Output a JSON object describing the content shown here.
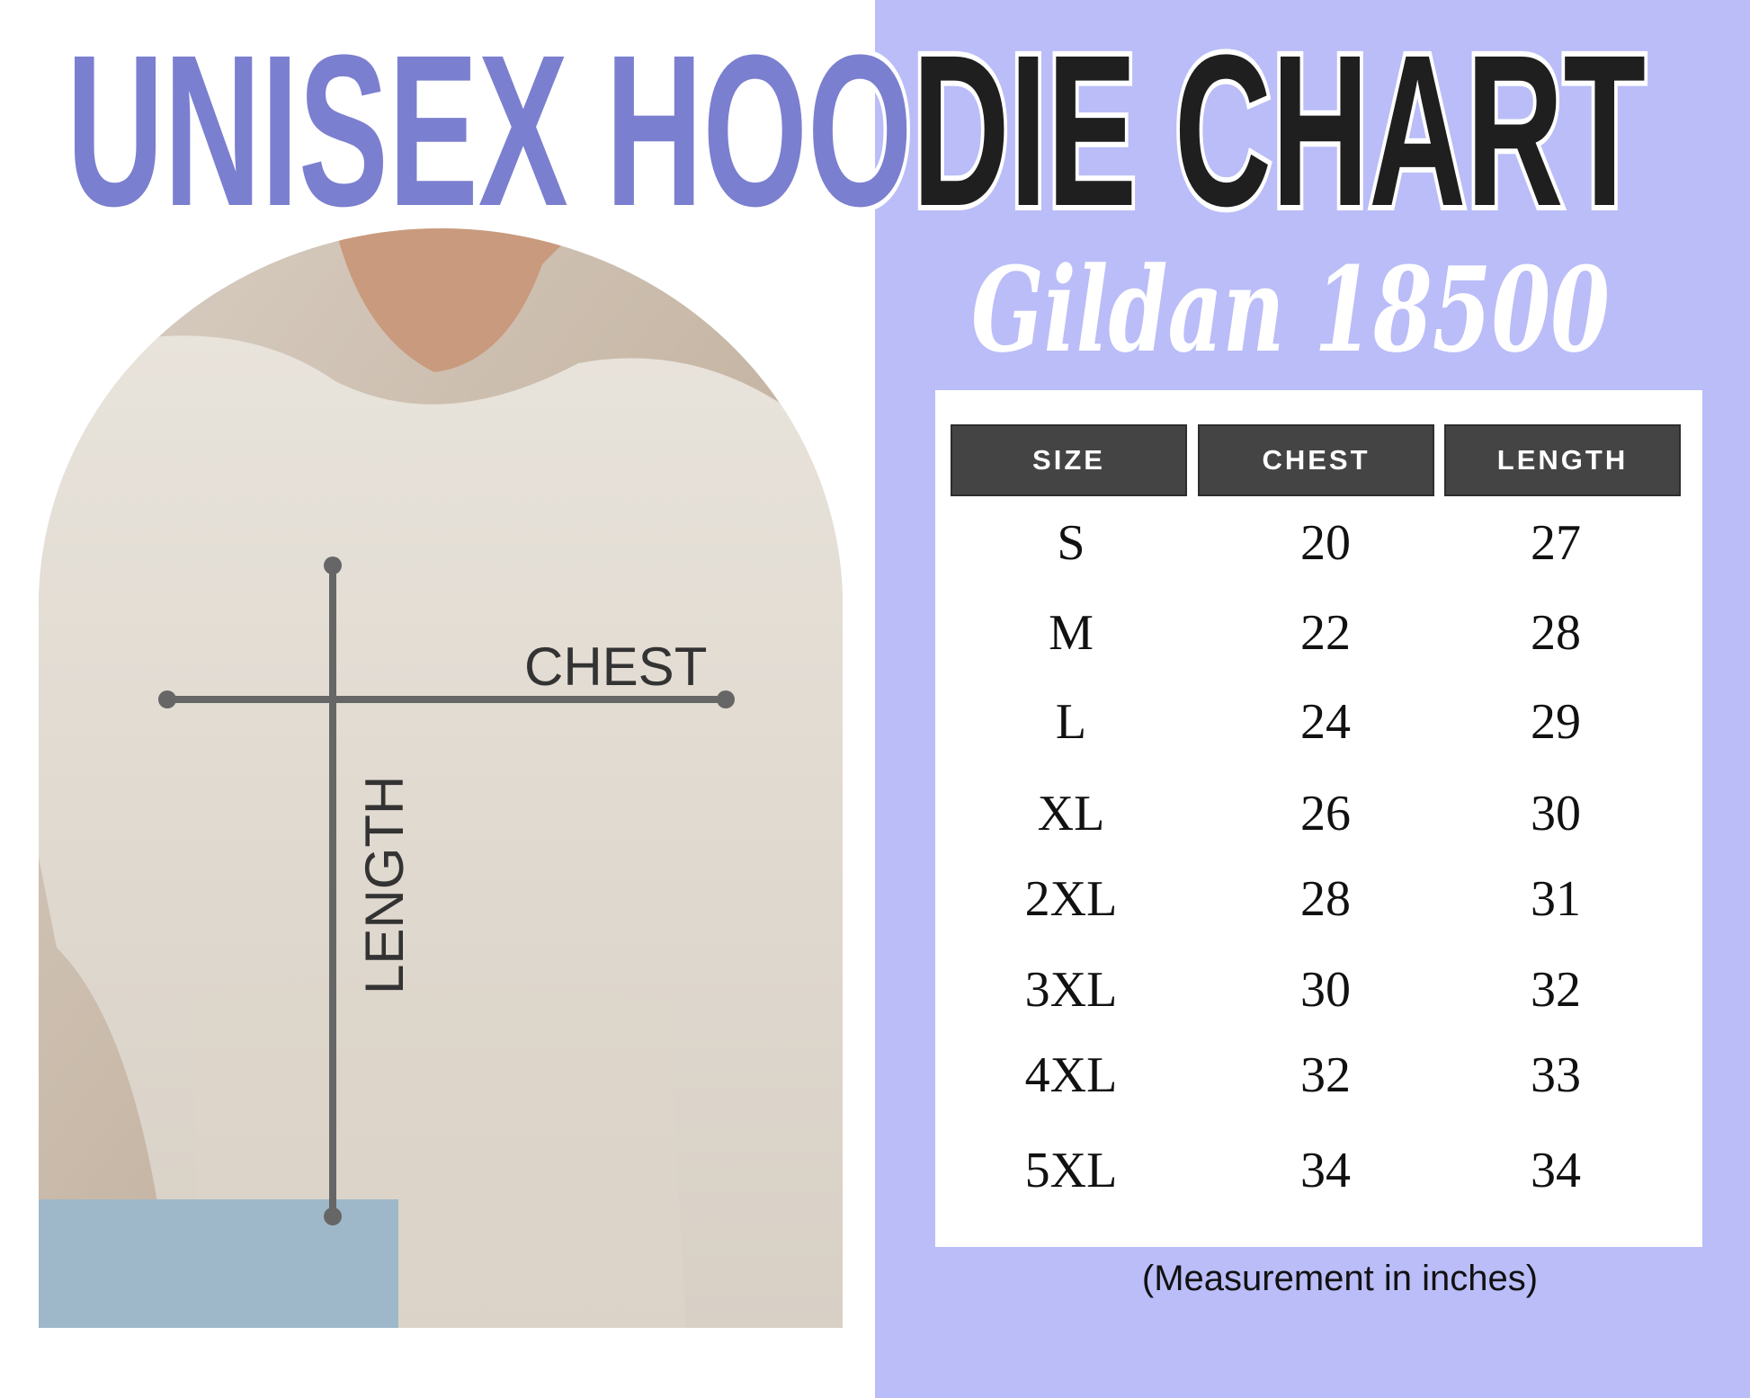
{
  "colors": {
    "panel": "#babdf8",
    "title_light": "#7b7fcf",
    "title_dark": "#1f1f1f",
    "header_bg": "#444444"
  },
  "title": {
    "part_light": "UNISEX HOO",
    "part_dark": "DIE CHART"
  },
  "subtitle": "Gildan 18500",
  "photo": {
    "chest_label": "CHEST",
    "length_label": "LENGTH"
  },
  "table": {
    "headers": [
      "SIZE",
      "CHEST",
      "LENGTH"
    ],
    "rows": [
      [
        "S",
        "20",
        "27"
      ],
      [
        "M",
        "22",
        "28"
      ],
      [
        "L",
        "24",
        "29"
      ],
      [
        "XL",
        "26",
        "30"
      ],
      [
        "2XL",
        "28",
        "31"
      ],
      [
        "3XL",
        "30",
        "32"
      ],
      [
        "4XL",
        "32",
        "33"
      ],
      [
        "5XL",
        "34",
        "34"
      ]
    ]
  },
  "footnote": "(Measurement in inches)"
}
